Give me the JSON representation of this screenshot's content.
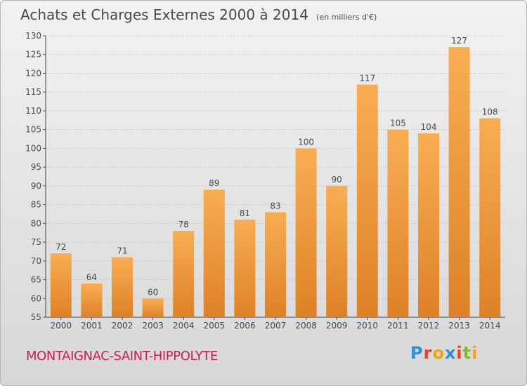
{
  "title": "Achats et Charges Externes 2000 à 2014",
  "unit": "(en milliers d'€)",
  "commune": "MONTAIGNAC-SAINT-HIPPOLYTE",
  "logo": {
    "letters": [
      "P",
      "r",
      "o",
      "x",
      "i",
      "t",
      "i"
    ],
    "colors": [
      "#2f8fd2",
      "#e4462c",
      "#f2a21b",
      "#2f8fd2",
      "#e4462c",
      "#86b832",
      "#f2a21b"
    ]
  },
  "colors": {
    "bar_light": "#f7a94f",
    "bar_dark": "#e0852c",
    "text": "#4a4a4a",
    "commune": "#c21f5a"
  },
  "chart_data": {
    "type": "bar",
    "title": "Achats et Charges Externes 2000 à 2014",
    "xlabel": "",
    "ylabel": "",
    "categories": [
      "2000",
      "2001",
      "2002",
      "2003",
      "2004",
      "2005",
      "2006",
      "2007",
      "2008",
      "2009",
      "2010",
      "2011",
      "2012",
      "2013",
      "2014"
    ],
    "values": [
      72,
      64,
      71,
      60,
      78,
      89,
      81,
      83,
      100,
      90,
      117,
      105,
      104,
      127,
      108
    ],
    "ylim": [
      55,
      130
    ],
    "yticks": [
      55,
      60,
      65,
      70,
      75,
      80,
      85,
      90,
      95,
      100,
      105,
      110,
      115,
      120,
      125,
      130
    ],
    "grid": true
  }
}
